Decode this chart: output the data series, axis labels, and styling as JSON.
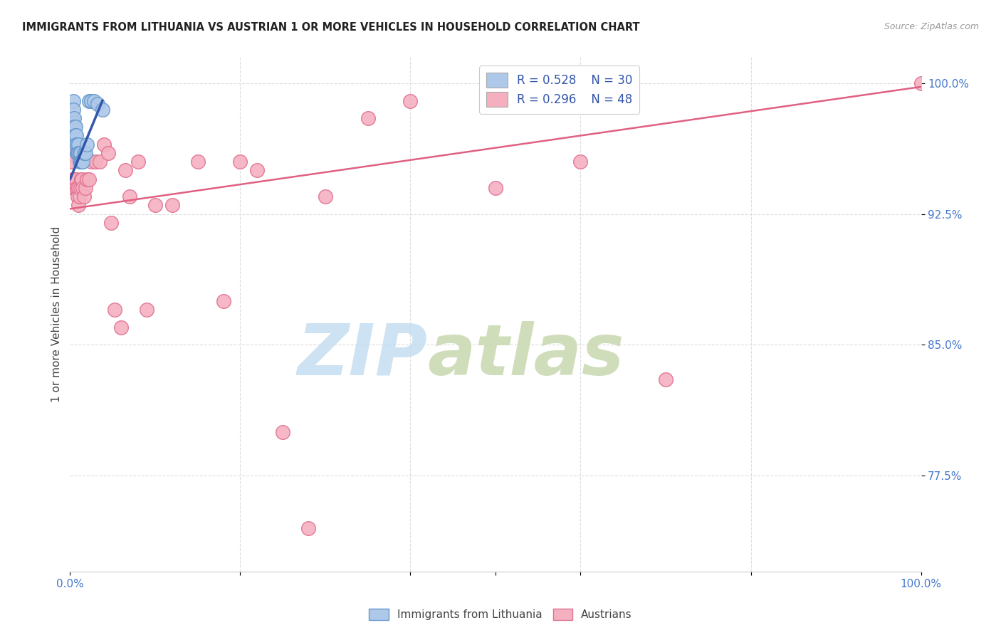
{
  "title": "IMMIGRANTS FROM LITHUANIA VS AUSTRIAN 1 OR MORE VEHICLES IN HOUSEHOLD CORRELATION CHART",
  "source": "Source: ZipAtlas.com",
  "ylabel": "1 or more Vehicles in Household",
  "xlim": [
    0.0,
    1.0
  ],
  "ylim": [
    0.72,
    1.015
  ],
  "ytick_positions": [
    0.775,
    0.85,
    0.925,
    1.0
  ],
  "ytick_labels": [
    "77.5%",
    "85.0%",
    "92.5%",
    "100.0%"
  ],
  "grid_color": "#dddddd",
  "background_color": "#ffffff",
  "series1_label": "Immigrants from Lithuania",
  "series1_color": "#adc8e8",
  "series1_edge_color": "#6699cc",
  "series1_line_color": "#3355aa",
  "series1_R": 0.528,
  "series1_N": 30,
  "series2_label": "Austrians",
  "series2_color": "#f5b0c0",
  "series2_edge_color": "#e07090",
  "series2_line_color": "#e06080",
  "series2_R": 0.296,
  "series2_N": 48,
  "series1_x": [
    0.002,
    0.003,
    0.004,
    0.004,
    0.005,
    0.005,
    0.006,
    0.006,
    0.007,
    0.007,
    0.008,
    0.008,
    0.009,
    0.01,
    0.01,
    0.011,
    0.011,
    0.012,
    0.012,
    0.013,
    0.014,
    0.015,
    0.016,
    0.018,
    0.02,
    0.022,
    0.025,
    0.028,
    0.032,
    0.038
  ],
  "series1_y": [
    0.98,
    0.975,
    0.99,
    0.985,
    0.98,
    0.975,
    0.975,
    0.97,
    0.97,
    0.965,
    0.965,
    0.96,
    0.96,
    0.965,
    0.96,
    0.96,
    0.955,
    0.96,
    0.955,
    0.955,
    0.955,
    0.955,
    0.96,
    0.96,
    0.965,
    0.99,
    0.99,
    0.99,
    0.988,
    0.985
  ],
  "series2_x": [
    0.001,
    0.002,
    0.003,
    0.004,
    0.005,
    0.005,
    0.006,
    0.007,
    0.008,
    0.009,
    0.01,
    0.01,
    0.011,
    0.012,
    0.013,
    0.014,
    0.015,
    0.016,
    0.018,
    0.02,
    0.022,
    0.025,
    0.03,
    0.035,
    0.04,
    0.045,
    0.048,
    0.052,
    0.06,
    0.065,
    0.07,
    0.08,
    0.09,
    0.1,
    0.12,
    0.15,
    0.18,
    0.2,
    0.22,
    0.25,
    0.28,
    0.3,
    0.35,
    0.4,
    0.5,
    0.6,
    0.7,
    1.0
  ],
  "series2_y": [
    0.96,
    0.955,
    0.945,
    0.94,
    0.945,
    0.94,
    0.945,
    0.945,
    0.94,
    0.935,
    0.94,
    0.93,
    0.935,
    0.94,
    0.945,
    0.945,
    0.94,
    0.935,
    0.94,
    0.945,
    0.945,
    0.955,
    0.955,
    0.955,
    0.965,
    0.96,
    0.92,
    0.87,
    0.86,
    0.95,
    0.935,
    0.955,
    0.87,
    0.93,
    0.93,
    0.955,
    0.875,
    0.955,
    0.95,
    0.8,
    0.745,
    0.935,
    0.98,
    0.99,
    0.94,
    0.955,
    0.83,
    1.0
  ],
  "s1_line_x": [
    0.0,
    0.038
  ],
  "s1_line_y": [
    0.945,
    0.99
  ],
  "s2_line_x": [
    0.0,
    1.0
  ],
  "s2_line_y": [
    0.928,
    0.998
  ],
  "watermark_zip": "ZIP",
  "watermark_atlas": "atlas",
  "watermark_color_zip": "#c5ddf0",
  "watermark_color_atlas": "#c8d8b0"
}
